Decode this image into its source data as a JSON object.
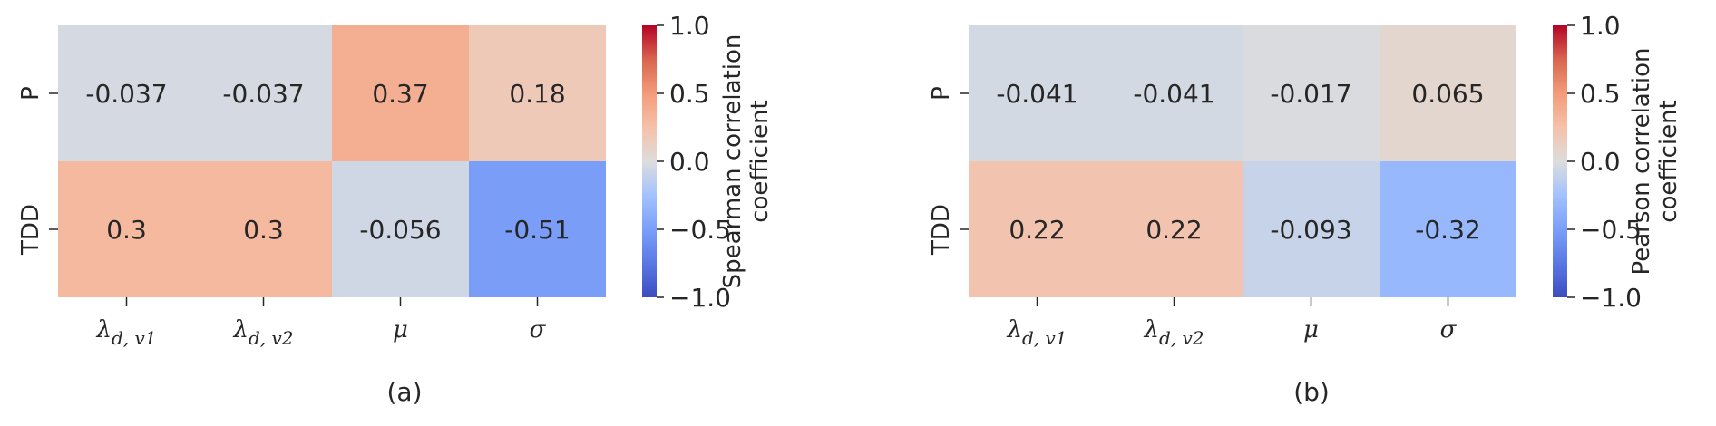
{
  "chart_data": [
    {
      "type": "heatmap",
      "panel_label": "(a)",
      "rows": [
        "P",
        "TDD"
      ],
      "columns": [
        {
          "base": "λ",
          "sub": "d, v1"
        },
        {
          "base": "λ",
          "sub": "d, v2"
        },
        {
          "base": "μ",
          "sub": ""
        },
        {
          "base": "σ",
          "sub": ""
        }
      ],
      "values": [
        [
          -0.037,
          -0.037,
          0.37,
          0.18
        ],
        [
          0.3,
          0.3,
          -0.056,
          -0.51
        ]
      ],
      "value_labels": [
        [
          "-0.037",
          "-0.037",
          "0.37",
          "0.18"
        ],
        [
          "0.3",
          "0.3",
          "-0.056",
          "-0.51"
        ]
      ],
      "colorbar": {
        "label_lines": [
          "Spearman correlation",
          "coefficient"
        ],
        "range": [
          -1.0,
          1.0
        ],
        "ticks": [
          1.0,
          0.5,
          0.0,
          -0.5,
          -1.0
        ],
        "tick_labels": [
          "1.0",
          "0.5",
          "0.0",
          "−0.5",
          "−1.0"
        ],
        "colormap": "coolwarm"
      }
    },
    {
      "type": "heatmap",
      "panel_label": "(b)",
      "rows": [
        "P",
        "TDD"
      ],
      "columns": [
        {
          "base": "λ",
          "sub": "d, v1"
        },
        {
          "base": "λ",
          "sub": "d, v2"
        },
        {
          "base": "μ",
          "sub": ""
        },
        {
          "base": "σ",
          "sub": ""
        }
      ],
      "values": [
        [
          -0.041,
          -0.041,
          -0.017,
          0.065
        ],
        [
          0.22,
          0.22,
          -0.093,
          -0.32
        ]
      ],
      "value_labels": [
        [
          "-0.041",
          "-0.041",
          "-0.017",
          "0.065"
        ],
        [
          "0.22",
          "0.22",
          "-0.093",
          "-0.32"
        ]
      ],
      "colorbar": {
        "label_lines": [
          "Pearson correlation",
          "coefficient"
        ],
        "range": [
          -1.0,
          1.0
        ],
        "ticks": [
          1.0,
          0.5,
          0.0,
          -0.5,
          -1.0
        ],
        "tick_labels": [
          "1.0",
          "0.5",
          "0.0",
          "−0.5",
          "−1.0"
        ],
        "colormap": "coolwarm"
      }
    }
  ]
}
